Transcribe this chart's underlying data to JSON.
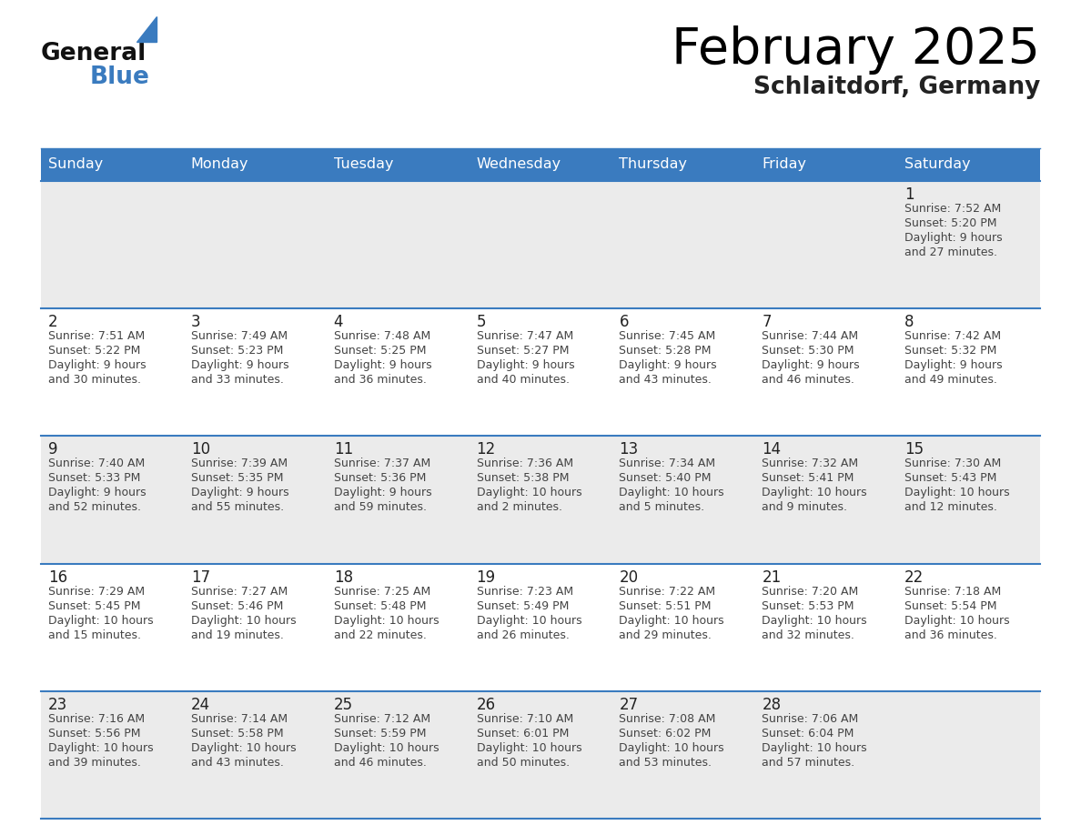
{
  "title": "February 2025",
  "subtitle": "Schlaitdorf, Germany",
  "header_bg": "#3a7bbf",
  "header_text": "#ffffff",
  "day_names": [
    "Sunday",
    "Monday",
    "Tuesday",
    "Wednesday",
    "Thursday",
    "Friday",
    "Saturday"
  ],
  "odd_row_bg": "#ebebeb",
  "even_row_bg": "#ffffff",
  "row_divider_color": "#3a7bbf",
  "cell_divider_color": "#cccccc",
  "date_color": "#222222",
  "info_color": "#444444",
  "title_color": "#000000",
  "subtitle_color": "#222222",
  "logo_general_color": "#111111",
  "logo_blue_color": "#3a7bbf",
  "logo_triangle_color": "#3a7bbf",
  "days": [
    {
      "day": 1,
      "col": 6,
      "row": 0,
      "sunrise": "7:52 AM",
      "sunset": "5:20 PM",
      "daylight_h": "9 hours",
      "daylight_m": "and 27 minutes."
    },
    {
      "day": 2,
      "col": 0,
      "row": 1,
      "sunrise": "7:51 AM",
      "sunset": "5:22 PM",
      "daylight_h": "9 hours",
      "daylight_m": "and 30 minutes."
    },
    {
      "day": 3,
      "col": 1,
      "row": 1,
      "sunrise": "7:49 AM",
      "sunset": "5:23 PM",
      "daylight_h": "9 hours",
      "daylight_m": "and 33 minutes."
    },
    {
      "day": 4,
      "col": 2,
      "row": 1,
      "sunrise": "7:48 AM",
      "sunset": "5:25 PM",
      "daylight_h": "9 hours",
      "daylight_m": "and 36 minutes."
    },
    {
      "day": 5,
      "col": 3,
      "row": 1,
      "sunrise": "7:47 AM",
      "sunset": "5:27 PM",
      "daylight_h": "9 hours",
      "daylight_m": "and 40 minutes."
    },
    {
      "day": 6,
      "col": 4,
      "row": 1,
      "sunrise": "7:45 AM",
      "sunset": "5:28 PM",
      "daylight_h": "9 hours",
      "daylight_m": "and 43 minutes."
    },
    {
      "day": 7,
      "col": 5,
      "row": 1,
      "sunrise": "7:44 AM",
      "sunset": "5:30 PM",
      "daylight_h": "9 hours",
      "daylight_m": "and 46 minutes."
    },
    {
      "day": 8,
      "col": 6,
      "row": 1,
      "sunrise": "7:42 AM",
      "sunset": "5:32 PM",
      "daylight_h": "9 hours",
      "daylight_m": "and 49 minutes."
    },
    {
      "day": 9,
      "col": 0,
      "row": 2,
      "sunrise": "7:40 AM",
      "sunset": "5:33 PM",
      "daylight_h": "9 hours",
      "daylight_m": "and 52 minutes."
    },
    {
      "day": 10,
      "col": 1,
      "row": 2,
      "sunrise": "7:39 AM",
      "sunset": "5:35 PM",
      "daylight_h": "9 hours",
      "daylight_m": "and 55 minutes."
    },
    {
      "day": 11,
      "col": 2,
      "row": 2,
      "sunrise": "7:37 AM",
      "sunset": "5:36 PM",
      "daylight_h": "9 hours",
      "daylight_m": "and 59 minutes."
    },
    {
      "day": 12,
      "col": 3,
      "row": 2,
      "sunrise": "7:36 AM",
      "sunset": "5:38 PM",
      "daylight_h": "10 hours",
      "daylight_m": "and 2 minutes."
    },
    {
      "day": 13,
      "col": 4,
      "row": 2,
      "sunrise": "7:34 AM",
      "sunset": "5:40 PM",
      "daylight_h": "10 hours",
      "daylight_m": "and 5 minutes."
    },
    {
      "day": 14,
      "col": 5,
      "row": 2,
      "sunrise": "7:32 AM",
      "sunset": "5:41 PM",
      "daylight_h": "10 hours",
      "daylight_m": "and 9 minutes."
    },
    {
      "day": 15,
      "col": 6,
      "row": 2,
      "sunrise": "7:30 AM",
      "sunset": "5:43 PM",
      "daylight_h": "10 hours",
      "daylight_m": "and 12 minutes."
    },
    {
      "day": 16,
      "col": 0,
      "row": 3,
      "sunrise": "7:29 AM",
      "sunset": "5:45 PM",
      "daylight_h": "10 hours",
      "daylight_m": "and 15 minutes."
    },
    {
      "day": 17,
      "col": 1,
      "row": 3,
      "sunrise": "7:27 AM",
      "sunset": "5:46 PM",
      "daylight_h": "10 hours",
      "daylight_m": "and 19 minutes."
    },
    {
      "day": 18,
      "col": 2,
      "row": 3,
      "sunrise": "7:25 AM",
      "sunset": "5:48 PM",
      "daylight_h": "10 hours",
      "daylight_m": "and 22 minutes."
    },
    {
      "day": 19,
      "col": 3,
      "row": 3,
      "sunrise": "7:23 AM",
      "sunset": "5:49 PM",
      "daylight_h": "10 hours",
      "daylight_m": "and 26 minutes."
    },
    {
      "day": 20,
      "col": 4,
      "row": 3,
      "sunrise": "7:22 AM",
      "sunset": "5:51 PM",
      "daylight_h": "10 hours",
      "daylight_m": "and 29 minutes."
    },
    {
      "day": 21,
      "col": 5,
      "row": 3,
      "sunrise": "7:20 AM",
      "sunset": "5:53 PM",
      "daylight_h": "10 hours",
      "daylight_m": "and 32 minutes."
    },
    {
      "day": 22,
      "col": 6,
      "row": 3,
      "sunrise": "7:18 AM",
      "sunset": "5:54 PM",
      "daylight_h": "10 hours",
      "daylight_m": "and 36 minutes."
    },
    {
      "day": 23,
      "col": 0,
      "row": 4,
      "sunrise": "7:16 AM",
      "sunset": "5:56 PM",
      "daylight_h": "10 hours",
      "daylight_m": "and 39 minutes."
    },
    {
      "day": 24,
      "col": 1,
      "row": 4,
      "sunrise": "7:14 AM",
      "sunset": "5:58 PM",
      "daylight_h": "10 hours",
      "daylight_m": "and 43 minutes."
    },
    {
      "day": 25,
      "col": 2,
      "row": 4,
      "sunrise": "7:12 AM",
      "sunset": "5:59 PM",
      "daylight_h": "10 hours",
      "daylight_m": "and 46 minutes."
    },
    {
      "day": 26,
      "col": 3,
      "row": 4,
      "sunrise": "7:10 AM",
      "sunset": "6:01 PM",
      "daylight_h": "10 hours",
      "daylight_m": "and 50 minutes."
    },
    {
      "day": 27,
      "col": 4,
      "row": 4,
      "sunrise": "7:08 AM",
      "sunset": "6:02 PM",
      "daylight_h": "10 hours",
      "daylight_m": "and 53 minutes."
    },
    {
      "day": 28,
      "col": 5,
      "row": 4,
      "sunrise": "7:06 AM",
      "sunset": "6:04 PM",
      "daylight_h": "10 hours",
      "daylight_m": "and 57 minutes."
    }
  ]
}
